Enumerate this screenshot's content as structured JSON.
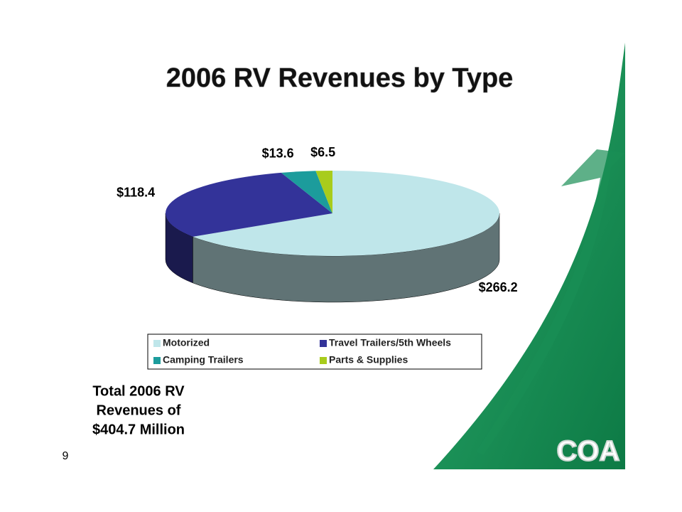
{
  "chart_data": {
    "type": "pie3d",
    "title": "2006 RV Revenues by Type",
    "categories": [
      "Motorized",
      "Travel Trailers/5th Wheels",
      "Camping Trailers",
      "Parts & Supplies"
    ],
    "values": [
      266.2,
      118.4,
      13.6,
      6.5
    ],
    "value_labels": [
      "$266.2",
      "$118.4",
      "$13.6",
      "$6.5"
    ],
    "colors": [
      "#bfe6ea",
      "#333399",
      "#1c9c9c",
      "#a8cc1c"
    ],
    "legend": "bottom",
    "annotations": [
      "Total 2006 RV",
      "Revenues of",
      "$404.7 Million"
    ]
  },
  "page_number": "9",
  "logo": "COA"
}
